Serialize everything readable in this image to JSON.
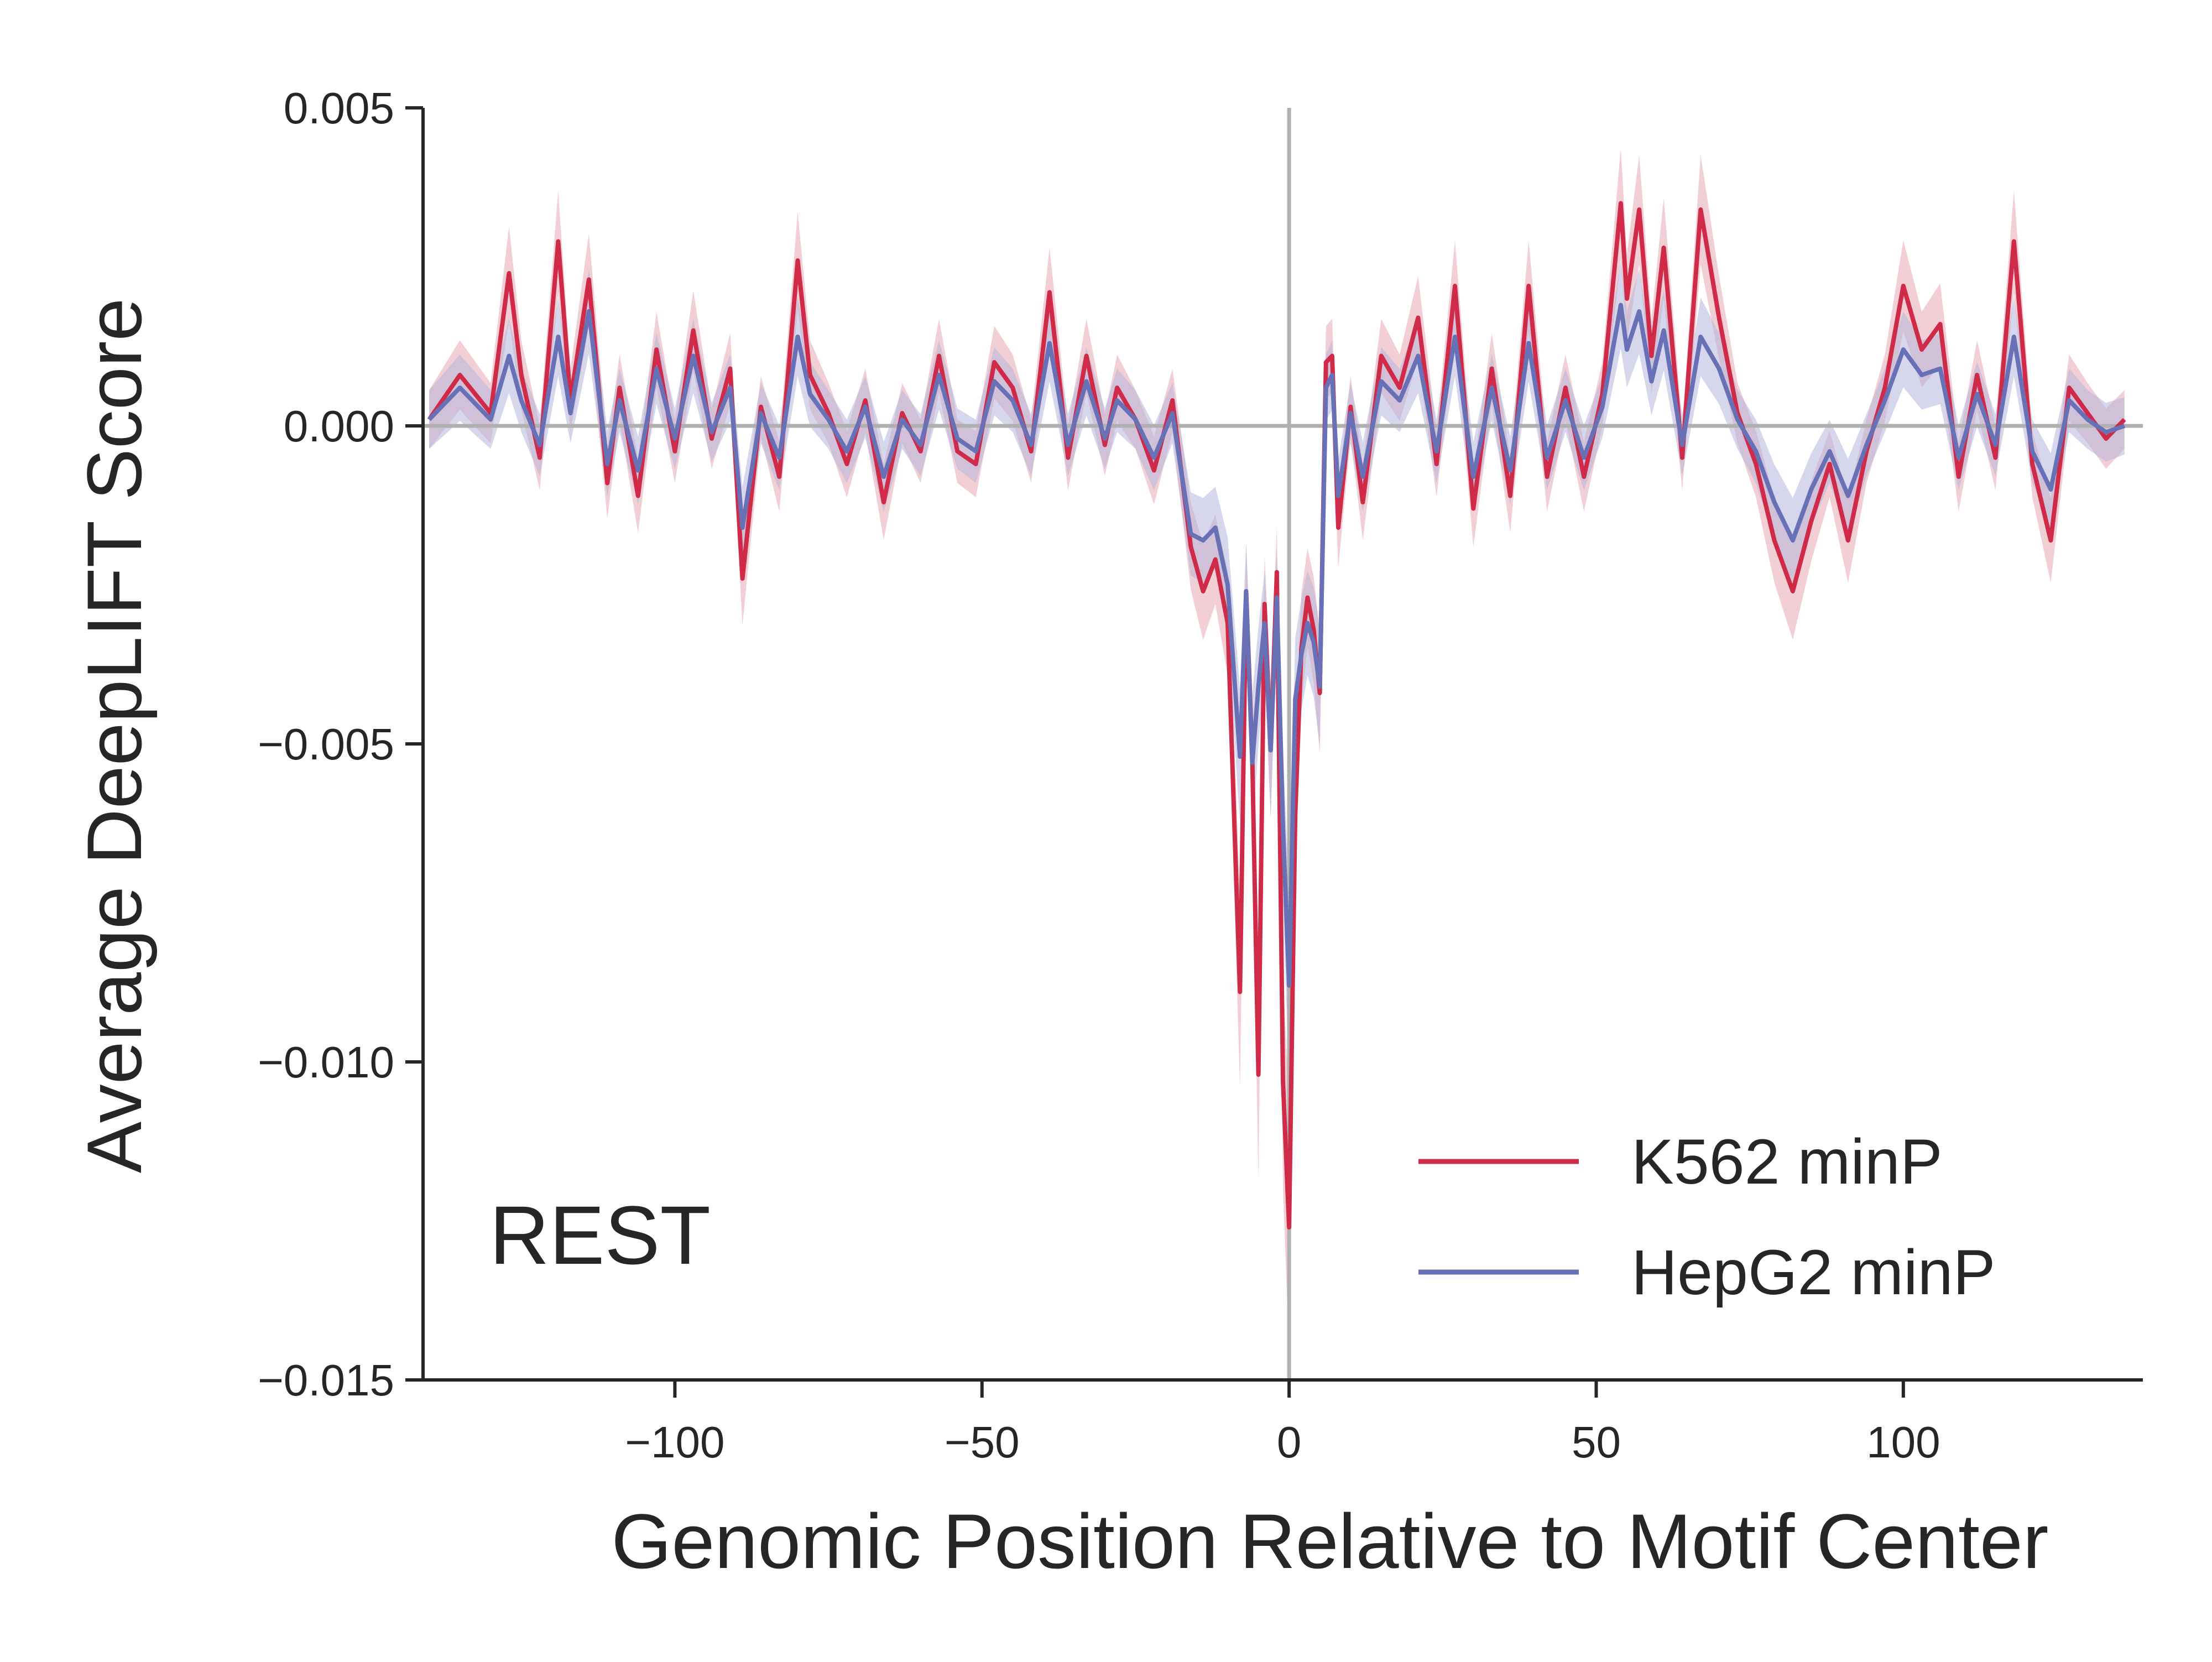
{
  "chart_data": {
    "type": "line",
    "xlabel": "Genomic Position Relative to Motif Center",
    "ylabel": "Average DeepLIFT Score",
    "annotation": "REST",
    "xlim": [
      -141,
      139
    ],
    "ylim": [
      -0.015,
      0.005
    ],
    "x_ticks": [
      -100,
      -50,
      0,
      50,
      100
    ],
    "x_tick_labels": [
      "−100",
      "−50",
      "0",
      "50",
      "100"
    ],
    "y_ticks": [
      0.005,
      0,
      -0.005,
      -0.01,
      -0.015
    ],
    "y_tick_labels": [
      "0.005",
      "0.000",
      "−0.005",
      "−0.010",
      "−0.015"
    ],
    "reference_lines": {
      "x": 0,
      "y": 0
    },
    "legend_position": "lower-right",
    "grid": false,
    "series": [
      {
        "name": "K562 minP",
        "color": "#cf2b48",
        "band_color": "#e8a6b3",
        "x": [
          -140,
          -135,
          -130,
          -127,
          -125,
          -122,
          -119,
          -117,
          -114,
          -111,
          -109,
          -106,
          -103,
          -100,
          -97,
          -94,
          -91,
          -89,
          -86,
          -83,
          -80,
          -78,
          -75,
          -72,
          -69,
          -66,
          -63,
          -60,
          -57,
          -54,
          -51,
          -48,
          -45,
          -42,
          -39,
          -36,
          -33,
          -30,
          -28,
          -25,
          -22,
          -19,
          -16,
          -14,
          -12,
          -10,
          -8,
          -7,
          -6,
          -5,
          -4,
          -3,
          -2,
          -1,
          0,
          1,
          2,
          3,
          4,
          5,
          6,
          7,
          8,
          10,
          12,
          15,
          18,
          21,
          24,
          27,
          30,
          33,
          36,
          39,
          42,
          45,
          48,
          51,
          54,
          55,
          57,
          59,
          61,
          64,
          67,
          70,
          73,
          76,
          79,
          82,
          85,
          88,
          91,
          94,
          97,
          100,
          103,
          106,
          109,
          112,
          115,
          118,
          121,
          124,
          127,
          130,
          133,
          136
        ],
        "y": [
          0.0001,
          0.0008,
          0.0002,
          0.0024,
          0.0008,
          -0.0005,
          0.0029,
          0.0004,
          0.0023,
          -0.0009,
          0.0006,
          -0.0011,
          0.0012,
          -0.0004,
          0.0015,
          -0.0002,
          0.0009,
          -0.0024,
          0.0003,
          -0.0008,
          0.0026,
          0.0008,
          0.0002,
          -0.0006,
          0.0004,
          -0.0012,
          0.0002,
          -0.0004,
          0.0011,
          -0.0004,
          -0.0006,
          0.001,
          0.0006,
          -0.0004,
          0.0021,
          -0.0005,
          0.0011,
          -0.0003,
          0.0006,
          0.0001,
          -0.0007,
          0.0004,
          -0.0019,
          -0.0026,
          -0.0021,
          -0.0031,
          -0.0089,
          -0.0026,
          -0.0052,
          -0.0102,
          -0.0028,
          -0.0051,
          -0.0023,
          -0.0103,
          -0.0126,
          -0.0061,
          -0.0035,
          -0.0027,
          -0.0032,
          -0.0042,
          0.001,
          0.0011,
          -0.0016,
          0.0003,
          -0.0012,
          0.0011,
          0.0006,
          0.0017,
          -0.0006,
          0.0022,
          -0.0013,
          0.0009,
          -0.0011,
          0.0022,
          -0.0008,
          0.0006,
          -0.0008,
          0.0005,
          0.0035,
          0.002,
          0.0034,
          0.0011,
          0.0028,
          -0.0005,
          0.0034,
          0.0017,
          0.0002,
          -0.0006,
          -0.0018,
          -0.0026,
          -0.0015,
          -0.0006,
          -0.0018,
          -0.0004,
          0.0006,
          0.0022,
          0.0012,
          0.0016,
          -0.0008,
          0.0008,
          -0.0005,
          0.0029,
          -0.0006,
          -0.0018,
          0.0006,
          0.0002,
          -0.0002,
          0.0001
        ]
      },
      {
        "name": "HepG2 minP",
        "color": "#6870b6",
        "band_color": "#b4b7dc",
        "x": [
          -140,
          -135,
          -130,
          -127,
          -125,
          -122,
          -119,
          -117,
          -114,
          -111,
          -109,
          -106,
          -103,
          -100,
          -97,
          -94,
          -91,
          -89,
          -86,
          -83,
          -80,
          -78,
          -75,
          -72,
          -69,
          -66,
          -63,
          -60,
          -57,
          -54,
          -51,
          -48,
          -45,
          -42,
          -39,
          -36,
          -33,
          -30,
          -28,
          -25,
          -22,
          -19,
          -16,
          -14,
          -12,
          -10,
          -8,
          -7,
          -6,
          -5,
          -4,
          -3,
          -2,
          -1,
          0,
          1,
          2,
          3,
          4,
          5,
          6,
          7,
          8,
          10,
          12,
          15,
          18,
          21,
          24,
          27,
          30,
          33,
          36,
          39,
          42,
          45,
          48,
          51,
          54,
          55,
          57,
          59,
          61,
          64,
          67,
          70,
          73,
          76,
          79,
          82,
          85,
          88,
          91,
          94,
          97,
          100,
          103,
          106,
          109,
          112,
          115,
          118,
          121,
          124,
          127,
          130,
          133,
          136
        ],
        "y": [
          0.0001,
          0.0006,
          0.0001,
          0.0011,
          0.0004,
          -0.0003,
          0.0014,
          0.0002,
          0.0018,
          -0.0006,
          0.0004,
          -0.0007,
          0.0009,
          -0.0002,
          0.0011,
          -0.0001,
          0.0006,
          -0.0016,
          0.0002,
          -0.0005,
          0.0014,
          0.0005,
          0.0001,
          -0.0004,
          0.0003,
          -0.0008,
          0.0001,
          -0.0003,
          0.0008,
          -0.0002,
          -0.0004,
          0.0007,
          0.0004,
          -0.0003,
          0.0013,
          -0.0003,
          0.0007,
          -0.0002,
          0.0004,
          0.0001,
          -0.0005,
          0.0002,
          -0.0017,
          -0.0018,
          -0.0016,
          -0.0025,
          -0.0052,
          -0.0026,
          -0.0053,
          -0.0041,
          -0.0031,
          -0.0051,
          -0.0027,
          -0.0063,
          -0.0088,
          -0.0043,
          -0.0036,
          -0.0031,
          -0.0034,
          -0.0041,
          0.0006,
          0.0008,
          -0.0011,
          0.0002,
          -0.0008,
          0.0007,
          0.0004,
          0.0011,
          -0.0004,
          0.0014,
          -0.0008,
          0.0006,
          -0.0007,
          0.0013,
          -0.0005,
          0.0004,
          -0.0005,
          0.0003,
          0.0019,
          0.0012,
          0.0018,
          0.0007,
          0.0015,
          -0.0003,
          0.0014,
          0.0009,
          0.0001,
          -0.0004,
          -0.0012,
          -0.0018,
          -0.001,
          -0.0004,
          -0.0011,
          -0.0003,
          0.0004,
          0.0012,
          0.0008,
          0.0009,
          -0.0005,
          0.0005,
          -0.0003,
          0.0014,
          -0.0004,
          -0.001,
          0.0004,
          0.0001,
          -0.0001,
          0.0
        ]
      }
    ]
  }
}
